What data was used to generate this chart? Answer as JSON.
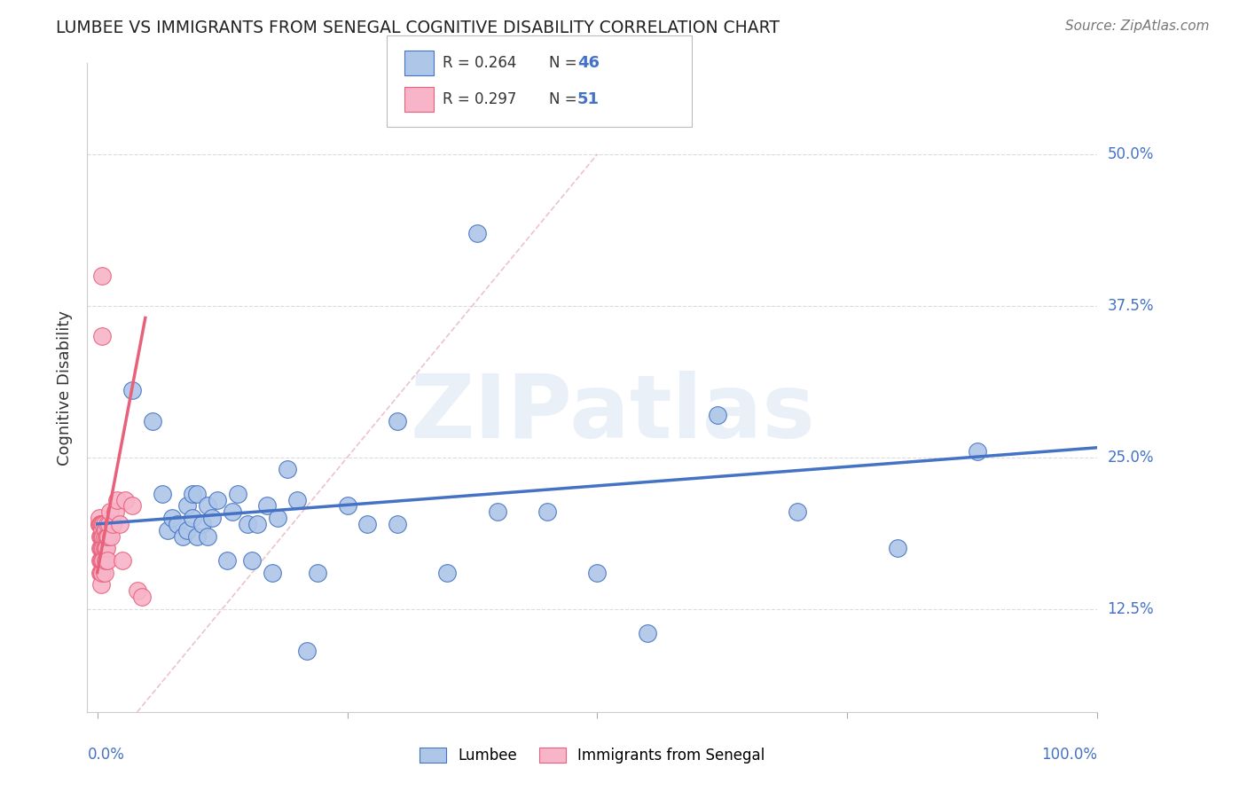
{
  "title": "LUMBEE VS IMMIGRANTS FROM SENEGAL COGNITIVE DISABILITY CORRELATION CHART",
  "source_text": "Source: ZipAtlas.com",
  "ylabel": "Cognitive Disability",
  "watermark": "ZIPatlas",
  "lumbee_R": 0.264,
  "lumbee_N": 46,
  "senegal_R": 0.297,
  "senegal_N": 51,
  "ytick_labels": [
    "12.5%",
    "25.0%",
    "37.5%",
    "50.0%"
  ],
  "ytick_vals": [
    0.125,
    0.25,
    0.375,
    0.5
  ],
  "xlim": [
    -0.01,
    1.0
  ],
  "ylim": [
    0.04,
    0.575
  ],
  "lumbee_color": "#aec6e8",
  "lumbee_line_color": "#4472c4",
  "senegal_color": "#f8b4c8",
  "senegal_line_color": "#e8607a",
  "diagonal_color": "#e8b4c0",
  "background_color": "#ffffff",
  "grid_color": "#cccccc",
  "tick_color": "#4472c4",
  "lumbee_x": [
    0.015,
    0.035,
    0.055,
    0.065,
    0.07,
    0.075,
    0.08,
    0.085,
    0.09,
    0.09,
    0.095,
    0.095,
    0.1,
    0.1,
    0.105,
    0.11,
    0.11,
    0.115,
    0.12,
    0.13,
    0.135,
    0.14,
    0.15,
    0.155,
    0.16,
    0.17,
    0.175,
    0.18,
    0.19,
    0.2,
    0.21,
    0.22,
    0.25,
    0.27,
    0.3,
    0.35,
    0.38,
    0.4,
    0.45,
    0.5,
    0.55,
    0.62,
    0.7,
    0.8,
    0.88,
    0.3
  ],
  "lumbee_y": [
    0.195,
    0.305,
    0.28,
    0.22,
    0.19,
    0.2,
    0.195,
    0.185,
    0.19,
    0.21,
    0.22,
    0.2,
    0.185,
    0.22,
    0.195,
    0.185,
    0.21,
    0.2,
    0.215,
    0.165,
    0.205,
    0.22,
    0.195,
    0.165,
    0.195,
    0.21,
    0.155,
    0.2,
    0.24,
    0.215,
    0.09,
    0.155,
    0.21,
    0.195,
    0.195,
    0.155,
    0.435,
    0.205,
    0.205,
    0.155,
    0.105,
    0.285,
    0.205,
    0.175,
    0.255,
    0.28
  ],
  "senegal_x": [
    0.002,
    0.002,
    0.002,
    0.003,
    0.003,
    0.003,
    0.003,
    0.003,
    0.004,
    0.004,
    0.004,
    0.004,
    0.004,
    0.004,
    0.005,
    0.005,
    0.005,
    0.005,
    0.005,
    0.005,
    0.005,
    0.005,
    0.006,
    0.006,
    0.006,
    0.006,
    0.007,
    0.007,
    0.007,
    0.007,
    0.008,
    0.008,
    0.008,
    0.009,
    0.009,
    0.01,
    0.01,
    0.01,
    0.011,
    0.012,
    0.013,
    0.014,
    0.015,
    0.018,
    0.02,
    0.022,
    0.025,
    0.028,
    0.035,
    0.04,
    0.045
  ],
  "senegal_y": [
    0.195,
    0.195,
    0.2,
    0.195,
    0.185,
    0.175,
    0.165,
    0.155,
    0.195,
    0.185,
    0.175,
    0.165,
    0.155,
    0.145,
    0.4,
    0.35,
    0.195,
    0.19,
    0.185,
    0.175,
    0.165,
    0.155,
    0.195,
    0.185,
    0.175,
    0.165,
    0.195,
    0.185,
    0.175,
    0.155,
    0.19,
    0.175,
    0.165,
    0.185,
    0.175,
    0.195,
    0.185,
    0.165,
    0.185,
    0.195,
    0.205,
    0.185,
    0.195,
    0.205,
    0.215,
    0.195,
    0.165,
    0.215,
    0.21,
    0.14,
    0.135
  ]
}
